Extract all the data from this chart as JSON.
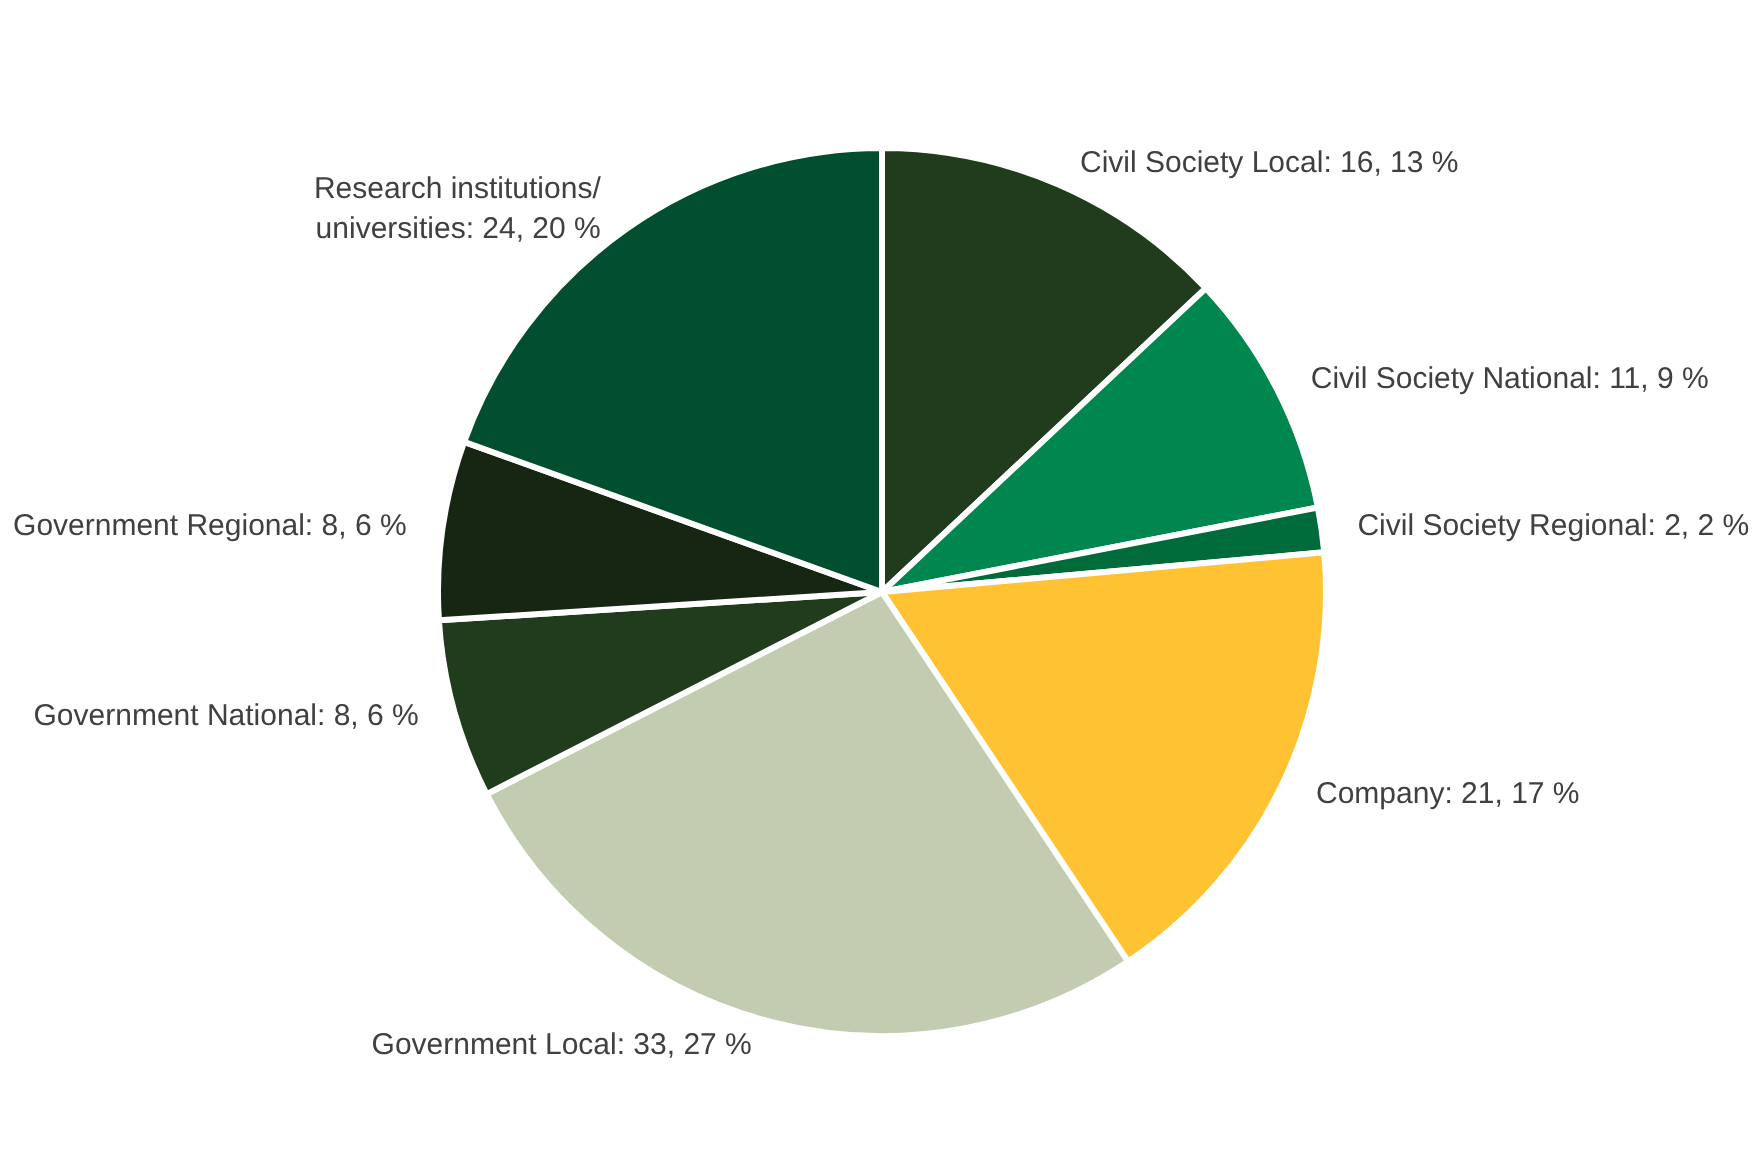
{
  "chart_data": {
    "type": "pie",
    "categories": [
      "Civil Society Local",
      "Civil Society National",
      "Civil Society Regional",
      "Company",
      "Government Local",
      "Government National",
      "Government Regional",
      "Research institutions/universities"
    ],
    "values": [
      16,
      11,
      2,
      21,
      33,
      8,
      8,
      24
    ],
    "value_labels": [
      "16, 13 %",
      "11, 9 %",
      "2, 2 %",
      "21, 17 %",
      "33, 27 %",
      "8, 6 %",
      "8, 6 %",
      "24, 20 %"
    ],
    "colors": [
      "#213b1d",
      "#00874f",
      "#006b3a",
      "#ffc233",
      "#c2ccb0",
      "#213b1d",
      "#172613",
      "#024f2f"
    ],
    "legend": false
  }
}
